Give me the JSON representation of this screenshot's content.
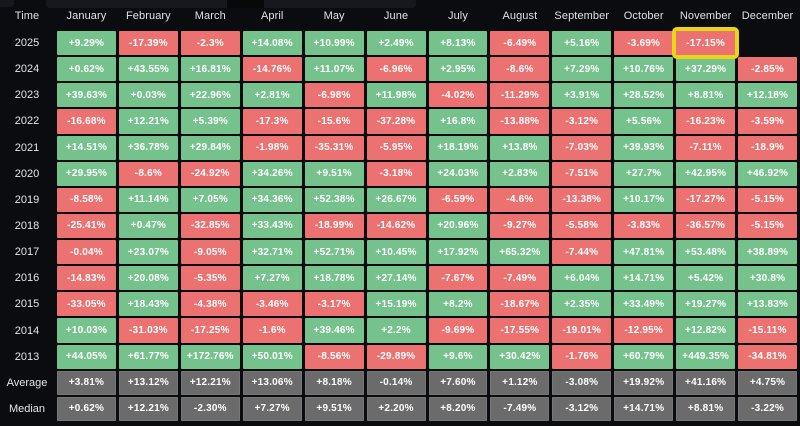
{
  "highlight": {
    "year": "2025",
    "month": "November",
    "value": "-17.15%"
  },
  "colors": {
    "positive_cell": "#76c28d",
    "negative_cell": "#ec7171",
    "summary_cell": "#6b6b6b",
    "highlight_border": "#e7d519",
    "background": "#0b0c10",
    "cell_text": "#ffffff",
    "label_text": "#e3e5e8"
  },
  "table": {
    "time_label": "Time",
    "months": [
      "January",
      "February",
      "March",
      "April",
      "May",
      "June",
      "July",
      "August",
      "September",
      "October",
      "November",
      "December"
    ],
    "rows": [
      {
        "label": "2025",
        "summary": false,
        "values": [
          "+9.29%",
          "-17.39%",
          "-2.3%",
          "+14.08%",
          "+10.99%",
          "+2.49%",
          "+8.13%",
          "-6.49%",
          "+5.16%",
          "-3.69%",
          "-17.15%",
          ""
        ]
      },
      {
        "label": "2024",
        "summary": false,
        "values": [
          "+0.62%",
          "+43.55%",
          "+16.81%",
          "-14.76%",
          "+11.07%",
          "-6.96%",
          "+2.95%",
          "-8.6%",
          "+7.29%",
          "+10.76%",
          "+37.29%",
          "-2.85%"
        ]
      },
      {
        "label": "2023",
        "summary": false,
        "values": [
          "+39.63%",
          "+0.03%",
          "+22.96%",
          "+2.81%",
          "-6.98%",
          "+11.98%",
          "-4.02%",
          "-11.29%",
          "+3.91%",
          "+28.52%",
          "+8.81%",
          "+12.18%"
        ]
      },
      {
        "label": "2022",
        "summary": false,
        "values": [
          "-16.68%",
          "+12.21%",
          "+5.39%",
          "-17.3%",
          "-15.6%",
          "-37.28%",
          "+16.8%",
          "-13.88%",
          "-3.12%",
          "+5.56%",
          "-16.23%",
          "-3.59%"
        ]
      },
      {
        "label": "2021",
        "summary": false,
        "values": [
          "+14.51%",
          "+36.78%",
          "+29.84%",
          "-1.98%",
          "-35.31%",
          "-5.95%",
          "+18.19%",
          "+13.8%",
          "-7.03%",
          "+39.93%",
          "-7.11%",
          "-18.9%"
        ]
      },
      {
        "label": "2020",
        "summary": false,
        "values": [
          "+29.95%",
          "-8.6%",
          "-24.92%",
          "+34.26%",
          "+9.51%",
          "-3.18%",
          "+24.03%",
          "+2.83%",
          "-7.51%",
          "+27.7%",
          "+42.95%",
          "+46.92%"
        ]
      },
      {
        "label": "2019",
        "summary": false,
        "values": [
          "-8.58%",
          "+11.14%",
          "+7.05%",
          "+34.36%",
          "+52.38%",
          "+26.67%",
          "-6.59%",
          "-4.6%",
          "-13.38%",
          "+10.17%",
          "-17.27%",
          "-5.15%"
        ]
      },
      {
        "label": "2018",
        "summary": false,
        "values": [
          "-25.41%",
          "+0.47%",
          "-32.85%",
          "+33.43%",
          "-18.99%",
          "-14.62%",
          "+20.96%",
          "-9.27%",
          "-5.58%",
          "-3.83%",
          "-36.57%",
          "-5.15%"
        ]
      },
      {
        "label": "2017",
        "summary": false,
        "values": [
          "-0.04%",
          "+23.07%",
          "-9.05%",
          "+32.71%",
          "+52.71%",
          "+10.45%",
          "+17.92%",
          "+65.32%",
          "-7.44%",
          "+47.81%",
          "+53.48%",
          "+38.89%"
        ]
      },
      {
        "label": "2016",
        "summary": false,
        "values": [
          "-14.83%",
          "+20.08%",
          "-5.35%",
          "+7.27%",
          "+18.78%",
          "+27.14%",
          "-7.67%",
          "-7.49%",
          "+6.04%",
          "+14.71%",
          "+5.42%",
          "+30.8%"
        ]
      },
      {
        "label": "2015",
        "summary": false,
        "values": [
          "-33.05%",
          "+18.43%",
          "-4.38%",
          "-3.46%",
          "-3.17%",
          "+15.19%",
          "+8.2%",
          "-18.67%",
          "+2.35%",
          "+33.49%",
          "+19.27%",
          "+13.83%"
        ]
      },
      {
        "label": "2014",
        "summary": false,
        "values": [
          "+10.03%",
          "-31.03%",
          "-17.25%",
          "-1.6%",
          "+39.46%",
          "+2.2%",
          "-9.69%",
          "-17.55%",
          "-19.01%",
          "-12.95%",
          "+12.82%",
          "-15.11%"
        ]
      },
      {
        "label": "2013",
        "summary": false,
        "values": [
          "+44.05%",
          "+61.77%",
          "+172.76%",
          "+50.01%",
          "-8.56%",
          "-29.89%",
          "+9.6%",
          "+30.42%",
          "-1.76%",
          "+60.79%",
          "+449.35%",
          "-34.81%"
        ]
      },
      {
        "label": "Average",
        "summary": true,
        "values": [
          "+3.81%",
          "+13.12%",
          "+12.21%",
          "+13.06%",
          "+8.18%",
          "-0.14%",
          "+7.60%",
          "+1.12%",
          "-3.08%",
          "+19.92%",
          "+41.16%",
          "+4.75%"
        ]
      },
      {
        "label": "Median",
        "summary": true,
        "values": [
          "+0.62%",
          "+12.21%",
          "-2.30%",
          "+7.27%",
          "+9.51%",
          "+2.20%",
          "+8.20%",
          "-7.49%",
          "-3.12%",
          "+14.71%",
          "+8.81%",
          "-3.22%"
        ]
      }
    ]
  },
  "chart_data": {
    "type": "heatmap",
    "x": [
      "January",
      "February",
      "March",
      "April",
      "May",
      "June",
      "July",
      "August",
      "September",
      "October",
      "November",
      "December"
    ],
    "y": [
      "2025",
      "2024",
      "2023",
      "2022",
      "2021",
      "2020",
      "2019",
      "2018",
      "2017",
      "2016",
      "2015",
      "2014",
      "2013",
      "Average",
      "Median"
    ],
    "values_pct": [
      [
        9.29,
        -17.39,
        -2.3,
        14.08,
        10.99,
        2.49,
        8.13,
        -6.49,
        5.16,
        -3.69,
        -17.15,
        null
      ],
      [
        0.62,
        43.55,
        16.81,
        -14.76,
        11.07,
        -6.96,
        2.95,
        -8.6,
        7.29,
        10.76,
        37.29,
        -2.85
      ],
      [
        39.63,
        0.03,
        22.96,
        2.81,
        -6.98,
        11.98,
        -4.02,
        -11.29,
        3.91,
        28.52,
        8.81,
        12.18
      ],
      [
        -16.68,
        12.21,
        5.39,
        -17.3,
        -15.6,
        -37.28,
        16.8,
        -13.88,
        -3.12,
        5.56,
        -16.23,
        -3.59
      ],
      [
        14.51,
        36.78,
        29.84,
        -1.98,
        -35.31,
        -5.95,
        18.19,
        13.8,
        -7.03,
        39.93,
        -7.11,
        -18.9
      ],
      [
        29.95,
        -8.6,
        -24.92,
        34.26,
        9.51,
        -3.18,
        24.03,
        2.83,
        -7.51,
        27.7,
        42.95,
        46.92
      ],
      [
        -8.58,
        11.14,
        7.05,
        34.36,
        52.38,
        26.67,
        -6.59,
        -4.6,
        -13.38,
        10.17,
        -17.27,
        -5.15
      ],
      [
        -25.41,
        0.47,
        -32.85,
        33.43,
        -18.99,
        -14.62,
        20.96,
        -9.27,
        -5.58,
        -3.83,
        -36.57,
        -5.15
      ],
      [
        -0.04,
        23.07,
        -9.05,
        32.71,
        52.71,
        10.45,
        17.92,
        65.32,
        -7.44,
        47.81,
        53.48,
        38.89
      ],
      [
        -14.83,
        20.08,
        -5.35,
        7.27,
        18.78,
        27.14,
        -7.67,
        -7.49,
        6.04,
        14.71,
        5.42,
        30.8
      ],
      [
        -33.05,
        18.43,
        -4.38,
        -3.46,
        -3.17,
        15.19,
        8.2,
        -18.67,
        2.35,
        33.49,
        19.27,
        13.83
      ],
      [
        10.03,
        -31.03,
        -17.25,
        -1.6,
        39.46,
        2.2,
        -9.69,
        -17.55,
        -19.01,
        -12.95,
        12.82,
        -15.11
      ],
      [
        44.05,
        61.77,
        172.76,
        50.01,
        -8.56,
        -29.89,
        9.6,
        30.42,
        -1.76,
        60.79,
        449.35,
        -34.81
      ],
      [
        3.81,
        13.12,
        12.21,
        13.06,
        8.18,
        -0.14,
        7.6,
        1.12,
        -3.08,
        19.92,
        41.16,
        4.75
      ],
      [
        0.62,
        12.21,
        -2.3,
        7.27,
        9.51,
        2.2,
        8.2,
        -7.49,
        -3.12,
        14.71,
        8.81,
        -3.22
      ]
    ],
    "legend_position": "none",
    "grid": true,
    "color_rule": "green = positive monthly return, red = negative, gray = Average/Median summary rows, empty = no data (Dec 2025)",
    "highlighted_cell": {
      "row": "2025",
      "column": "November",
      "value_pct": -17.15
    }
  }
}
